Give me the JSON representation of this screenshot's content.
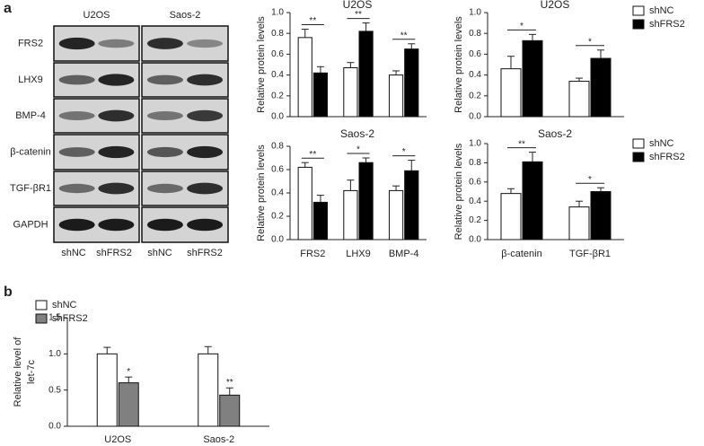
{
  "panel_labels": [
    "a",
    "b"
  ],
  "blot": {
    "columns": [
      "U2OS",
      "Saos-2"
    ],
    "rows": [
      "FRS2",
      "LHX9",
      "BMP-4",
      "β-catenin",
      "TGF-βR1",
      "GAPDH"
    ],
    "lanes": [
      "shNC",
      "shFRS2",
      "shNC",
      "shFRS2"
    ]
  },
  "chart_data": [
    {
      "type": "bar",
      "title": "U2OS",
      "ylabel": "Relative protein levels",
      "categories": [
        null,
        null,
        null
      ],
      "series": [
        {
          "name": "shNC",
          "color": "#ffffff",
          "values": [
            0.76,
            0.47,
            0.4
          ],
          "errors": [
            0.08,
            0.05,
            0.04
          ]
        },
        {
          "name": "shFRS2",
          "color": "#000000",
          "values": [
            0.42,
            0.82,
            0.65
          ],
          "errors": [
            0.06,
            0.08,
            0.05
          ]
        }
      ],
      "significance": [
        "**",
        "**",
        "**"
      ],
      "ylim": [
        0,
        1
      ],
      "yticks": [
        {
          "value": 0,
          "label": "0.0"
        },
        0.2,
        0.4,
        0.6,
        0.8,
        {
          "value": 1,
          "label": "1.0"
        }
      ],
      "legend": false
    },
    {
      "type": "bar",
      "title": "U2OS",
      "ylabel": "Relative protein levels",
      "categories": [
        null,
        null
      ],
      "series": [
        {
          "name": "shNC",
          "color": "#ffffff",
          "values": [
            0.46,
            0.34
          ],
          "errors": [
            0.12,
            0.03
          ]
        },
        {
          "name": "shFRS2",
          "color": "#000000",
          "values": [
            0.73,
            0.56
          ],
          "errors": [
            0.06,
            0.08
          ]
        }
      ],
      "significance": [
        "*",
        "*"
      ],
      "ylim": [
        0,
        1
      ],
      "yticks": [
        {
          "value": 0,
          "label": "0.0"
        },
        0.2,
        0.4,
        0.6,
        0.8,
        {
          "value": 1,
          "label": "1.0"
        }
      ],
      "legend": "right-outside"
    },
    {
      "type": "bar",
      "title": "Saos-2",
      "ylabel": "Relative protein levels",
      "categories": [
        "FRS2",
        "LHX9",
        "BMP-4"
      ],
      "series": [
        {
          "name": "shNC",
          "color": "#ffffff",
          "values": [
            0.62,
            0.42,
            0.42
          ],
          "errors": [
            0.04,
            0.09,
            0.04
          ]
        },
        {
          "name": "shFRS2",
          "color": "#000000",
          "values": [
            0.32,
            0.66,
            0.59
          ],
          "errors": [
            0.06,
            0.04,
            0.09
          ]
        }
      ],
      "significance": [
        "**",
        "*",
        "*"
      ],
      "ylim": [
        0,
        0.8
      ],
      "yticks": [
        {
          "value": 0,
          "label": "0.0"
        },
        0.2,
        0.4,
        0.6,
        0.8
      ],
      "legend": false
    },
    {
      "type": "bar",
      "title": "Saos-2",
      "ylabel": "Relative protein levels",
      "categories": [
        "β-catenin",
        "TGF-βR1"
      ],
      "series": [
        {
          "name": "shNC",
          "color": "#ffffff",
          "values": [
            0.48,
            0.34
          ],
          "errors": [
            0.05,
            0.06
          ]
        },
        {
          "name": "shFRS2",
          "color": "#000000",
          "values": [
            0.81,
            0.5
          ],
          "errors": [
            0.1,
            0.04
          ]
        }
      ],
      "significance": [
        "**",
        "*"
      ],
      "ylim": [
        0,
        1
      ],
      "yticks": [
        {
          "value": 0,
          "label": "0.0"
        },
        0.2,
        0.4,
        0.6,
        0.8,
        {
          "value": 1,
          "label": "1.0"
        }
      ],
      "legend": "right-outside"
    },
    {
      "type": "bar",
      "ylabel": [
        "Relative level of",
        "let-7c"
      ],
      "categories": [
        "U2OS",
        "Saos-2"
      ],
      "series": [
        {
          "name": "shNC",
          "color": "#ffffff",
          "values": [
            1.0,
            1.0
          ],
          "errors": [
            0.09,
            0.1
          ]
        },
        {
          "name": "shFRS2",
          "color": "#808080",
          "values": [
            0.6,
            0.43
          ],
          "errors": [
            0.08,
            0.1
          ]
        }
      ],
      "bar_labels": [
        null,
        [
          "*",
          "**"
        ]
      ],
      "ylim": [
        0,
        1.5
      ],
      "yticks": [
        {
          "value": 0,
          "label": "0.0"
        },
        0.5,
        {
          "value": 1,
          "label": "1.0"
        },
        1.5
      ],
      "legend": "top-left"
    }
  ]
}
